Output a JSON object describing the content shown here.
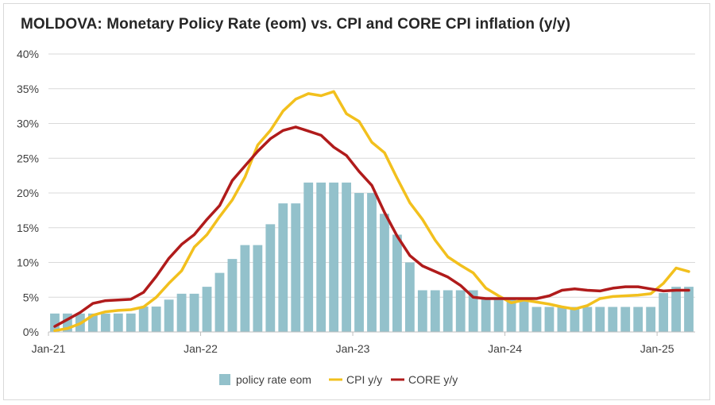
{
  "chart_data": {
    "type": "bar+line",
    "title": "MOLDOVA: Monetary Policy Rate (eom) vs. CPI and CORE CPI inflation (y/y)",
    "xlabel": "",
    "ylabel": "",
    "ylim": [
      0,
      40
    ],
    "yticks": [
      "0%",
      "5%",
      "10%",
      "15%",
      "20%",
      "25%",
      "30%",
      "35%",
      "40%"
    ],
    "x_tick_labels": [
      {
        "label": "Jan-21",
        "month_index": 0
      },
      {
        "label": "Jan-22",
        "month_index": 12
      },
      {
        "label": "Jan-23",
        "month_index": 24
      },
      {
        "label": "Jan-24",
        "month_index": 36
      },
      {
        "label": "Jan-25",
        "month_index": 48
      }
    ],
    "grid": true,
    "legend_position": "bottom",
    "colors": {
      "bar": "#93c1cb",
      "cpi": "#f2c01d",
      "core": "#b01b1b",
      "grid": "#d9d9d9",
      "text": "#404040"
    },
    "series": [
      {
        "name": "policy rate eom",
        "type": "bar",
        "values": [
          2.65,
          2.65,
          2.65,
          2.65,
          2.65,
          2.65,
          2.65,
          3.65,
          3.65,
          4.65,
          5.5,
          5.5,
          6.5,
          8.5,
          10.5,
          12.5,
          12.5,
          15.5,
          18.5,
          18.5,
          21.5,
          21.5,
          21.5,
          21.5,
          20.0,
          20.0,
          17.0,
          14.0,
          10.0,
          6.0,
          6.0,
          6.0,
          6.0,
          6.0,
          4.75,
          4.75,
          4.75,
          4.75,
          3.6,
          3.6,
          3.6,
          3.6,
          3.6,
          3.6,
          3.6,
          3.6,
          3.6,
          3.6,
          5.6,
          6.5,
          6.5
        ]
      },
      {
        "name": "CPI y/y",
        "type": "line",
        "values": [
          0.2,
          0.5,
          1.2,
          2.4,
          2.9,
          3.1,
          3.2,
          3.6,
          5.0,
          7.0,
          8.8,
          12.2,
          14.0,
          16.6,
          19.0,
          22.3,
          26.9,
          29.0,
          31.8,
          33.5,
          34.3,
          34.0,
          34.6,
          31.4,
          30.3,
          27.3,
          25.8,
          22.1,
          18.6,
          16.2,
          13.2,
          10.8,
          9.6,
          8.5,
          6.3,
          5.2,
          4.2,
          4.6,
          4.3,
          4.0,
          3.6,
          3.3,
          3.8,
          4.8,
          5.1,
          5.2,
          5.3,
          5.5,
          7.0,
          9.2,
          8.7
        ]
      },
      {
        "name": "CORE y/y",
        "type": "line",
        "values": [
          0.8,
          1.8,
          2.8,
          4.1,
          4.5,
          4.6,
          4.7,
          5.7,
          8.0,
          10.6,
          12.6,
          14.0,
          16.2,
          18.2,
          21.8,
          23.9,
          26.0,
          27.8,
          29.0,
          29.5,
          28.9,
          28.3,
          26.6,
          25.4,
          23.1,
          21.1,
          17.2,
          13.8,
          11.0,
          9.5,
          8.7,
          7.9,
          6.7,
          5.0,
          4.8,
          4.8,
          4.8,
          4.8,
          4.8,
          5.2,
          6.0,
          6.2,
          6.0,
          5.9,
          6.3,
          6.5,
          6.5,
          6.2,
          5.9,
          6.0,
          6.0
        ]
      }
    ]
  }
}
